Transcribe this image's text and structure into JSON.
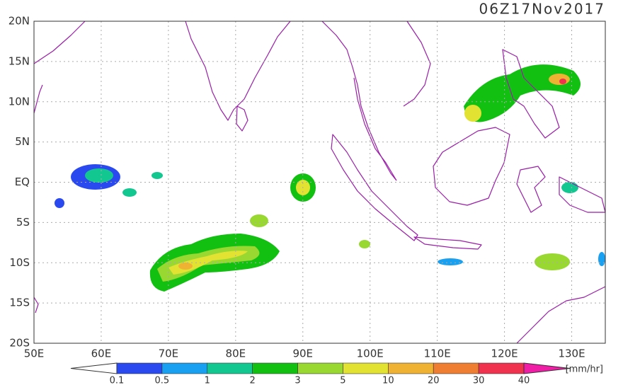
{
  "title": "06Z17Nov2017",
  "lat_labels": [
    "20N",
    "15N",
    "10N",
    "5N",
    "EQ",
    "5S",
    "10S",
    "15S",
    "20S"
  ],
  "lon_labels": [
    "50E",
    "60E",
    "70E",
    "80E",
    "90E",
    "100E",
    "110E",
    "120E",
    "130E"
  ],
  "colorbar": {
    "levels": [
      0.1,
      0.5,
      1,
      2,
      3,
      5,
      10,
      20,
      30,
      40
    ],
    "colors": [
      "#ffffff",
      "#2a4af0",
      "#19a0f0",
      "#12c890",
      "#12c012",
      "#98d830",
      "#e2e232",
      "#f0b232",
      "#f07e32",
      "#f0324e",
      "#f01ea6"
    ],
    "unit": "[mm/hr]"
  }
}
